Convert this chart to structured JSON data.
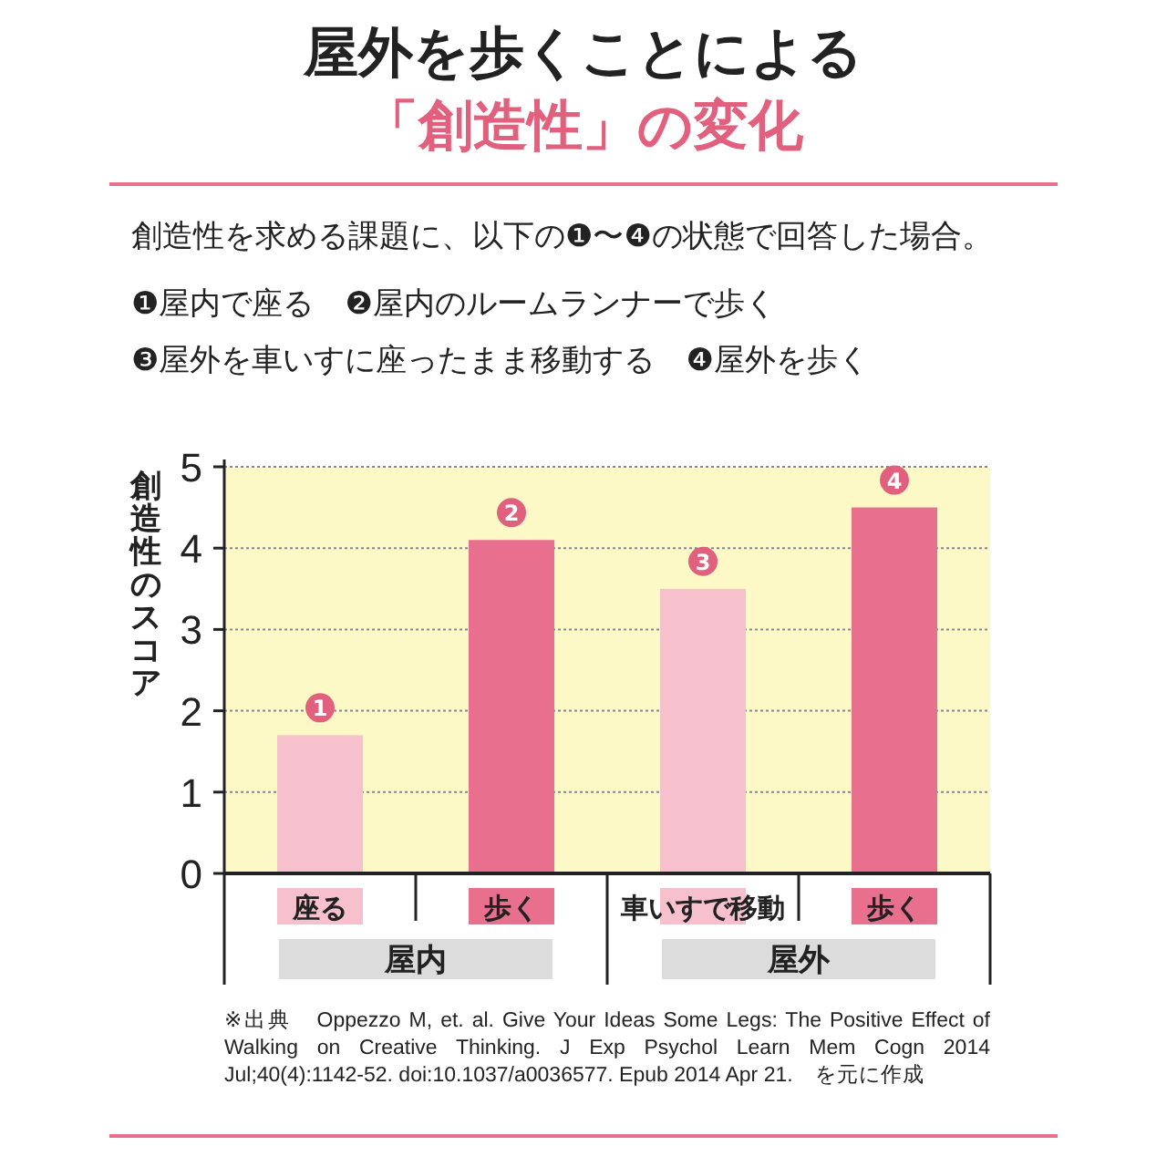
{
  "chart_data": {
    "type": "bar",
    "title": "屋外を歩くことによる「創造性」の変化",
    "subtitle": "創造性を求める課題に、以下の❶〜❹の状態で回答した場合。",
    "ylabel": "創造性のスコア",
    "categories": [
      "座る",
      "歩く",
      "車いすで移動",
      "歩く"
    ],
    "values": [
      1.7,
      4.1,
      3.5,
      4.5
    ],
    "colors": [
      "#f6c1cc",
      "#e8708e",
      "#f6c1cc",
      "#e8708e"
    ],
    "ylim": [
      0,
      5
    ],
    "yticks": [
      0,
      1,
      2,
      3,
      4,
      5
    ],
    "grid": "y",
    "annotations": [
      "❶屋内で座る　❷屋内のルームランナーで歩く",
      "❸屋外を車いすに座ったまま移動する　❹屋外を歩く",
      "屋内",
      "屋外",
      "※出典　Oppezzo M, et. al. Give Your Ideas Some Legs: The Positive Effect of Walking on Creative Thinking. J Exp Psychol Learn Mem Cogn 2014 Jul;40(4):1142-52. doi:10.1037/a0036577. Epub 2014 Apr 21.　を元に作成",
      "1",
      "2",
      "3",
      "4"
    ]
  }
}
